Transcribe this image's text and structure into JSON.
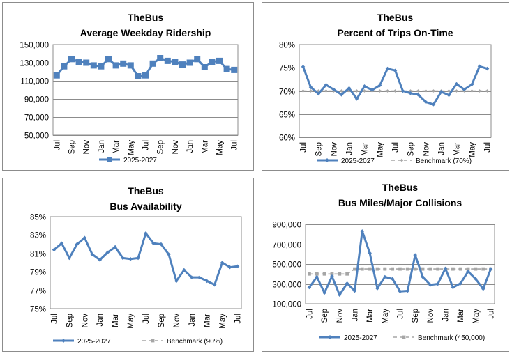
{
  "chart_data": [
    {
      "id": "ridership",
      "type": "line",
      "title": "TheBus",
      "subtitle": "Average Weekday Ridership",
      "ylim": [
        50000,
        150000
      ],
      "yticks": [
        50000,
        70000,
        90000,
        110000,
        130000,
        150000
      ],
      "ytick_labels": [
        "50,000",
        "70,000",
        "90,000",
        "110,000",
        "130,000",
        "150,000"
      ],
      "x_tick_labels": [
        "Jul",
        "Sep",
        "Nov",
        "Jan",
        "Mar",
        "May",
        "Jul",
        "Sep",
        "Nov",
        "Jan",
        "Mar",
        "May",
        "Jul"
      ],
      "grid": true,
      "legend_position": "bottom",
      "series": [
        {
          "name": "2025-2027",
          "color": "#4f81bd",
          "marker": "square",
          "values": [
            116000,
            126000,
            134000,
            131000,
            130000,
            127000,
            126000,
            134000,
            127000,
            129000,
            127000,
            115000,
            116000,
            129000,
            135000,
            132000,
            131000,
            128000,
            130000,
            134000,
            125000,
            131000,
            132000,
            123000,
            122000
          ]
        }
      ]
    },
    {
      "id": "on_time",
      "type": "line",
      "title": "TheBus",
      "subtitle": "Percent of Trips On-Time",
      "ylim": [
        60,
        80
      ],
      "yticks": [
        60,
        65,
        70,
        75,
        80
      ],
      "ytick_labels": [
        "60%",
        "65%",
        "70%",
        "75%",
        "80%"
      ],
      "x_tick_labels": [
        "Jul",
        "Sep",
        "Nov",
        "Jan",
        "Mar",
        "May",
        "Jul",
        "Sep",
        "Nov",
        "Jan",
        "Mar",
        "May",
        "Jul"
      ],
      "grid": true,
      "legend_position": "bottom",
      "series": [
        {
          "name": "2025-2027",
          "color": "#4f81bd",
          "marker": "diamond",
          "values": [
            75.2,
            70.8,
            69.4,
            71.3,
            70.3,
            69.2,
            70.6,
            68.3,
            71.0,
            70.2,
            71.2,
            74.8,
            74.4,
            70.0,
            69.5,
            69.2,
            67.6,
            67.1,
            69.8,
            69.1,
            71.5,
            70.3,
            71.4,
            75.3,
            74.8
          ]
        },
        {
          "name": "Benchmark (70%)",
          "color": "#a6a6a6",
          "marker": "diamond",
          "dashed": true,
          "values": [
            70,
            70,
            70,
            70,
            70,
            70,
            70,
            70,
            70,
            70,
            70,
            70,
            70,
            70,
            70,
            70,
            70,
            70,
            70,
            70,
            70,
            70,
            70,
            70,
            70
          ]
        }
      ]
    },
    {
      "id": "availability",
      "type": "line",
      "title": "TheBus",
      "subtitle": "Bus Availability",
      "ylim": [
        75,
        85
      ],
      "yticks": [
        75,
        77,
        79,
        81,
        83,
        85
      ],
      "ytick_labels": [
        "75%",
        "77%",
        "79%",
        "81%",
        "83%",
        "85%"
      ],
      "x_tick_labels": [
        "Jul",
        "Sep",
        "Nov",
        "Jan",
        "Mar",
        "May",
        "Jul",
        "Sep",
        "Nov",
        "Jan",
        "Mar",
        "May",
        "Jul"
      ],
      "grid": true,
      "legend_position": "bottom",
      "series": [
        {
          "name": "2025-2027",
          "color": "#4f81bd",
          "marker": "diamond",
          "values": [
            81.4,
            82.1,
            80.5,
            82.0,
            82.7,
            80.9,
            80.3,
            81.1,
            81.7,
            80.5,
            80.4,
            80.5,
            83.2,
            82.1,
            82.0,
            80.9,
            78.0,
            79.2,
            78.4,
            78.4,
            78.0,
            77.6,
            80.0,
            79.5,
            79.6
          ]
        },
        {
          "name": "Benchmark (90%)",
          "color": "#a6a6a6",
          "marker": "square",
          "dashed": true,
          "values": [
            90,
            90,
            90,
            90,
            90,
            90,
            90,
            90,
            90,
            90,
            90,
            90,
            90,
            90,
            90,
            90,
            90,
            90,
            90,
            90,
            90,
            90,
            90,
            90,
            90
          ]
        }
      ]
    },
    {
      "id": "collisions",
      "type": "line",
      "title": "TheBus",
      "subtitle": "Bus Miles/Major Collisions",
      "ylim": [
        100000,
        900000
      ],
      "yticks": [
        100000,
        300000,
        500000,
        700000,
        900000
      ],
      "ytick_labels": [
        "100,000",
        "300,000",
        "500,000",
        "700,000",
        "900,000"
      ],
      "x_tick_labels": [
        "Jul",
        "Sep",
        "Nov",
        "Jan",
        "Mar",
        "May",
        "Jul",
        "Sep",
        "Nov",
        "Jan",
        "Mar",
        "May",
        "Jul"
      ],
      "grid": true,
      "legend_position": "bottom",
      "series": [
        {
          "name": "2025-2027",
          "color": "#4f81bd",
          "marker": "diamond",
          "values": [
            265000,
            370000,
            210000,
            375000,
            190000,
            305000,
            230000,
            830000,
            610000,
            255000,
            370000,
            350000,
            225000,
            230000,
            590000,
            370000,
            290000,
            300000,
            455000,
            265000,
            305000,
            425000,
            350000,
            250000,
            450000
          ]
        },
        {
          "name": "Benchmark (450,000)",
          "color": "#a6a6a6",
          "marker": "square",
          "dashed": true,
          "values": [
            400000,
            400000,
            400000,
            400000,
            400000,
            400000,
            450000,
            450000,
            450000,
            450000,
            450000,
            450000,
            450000,
            450000,
            450000,
            450000,
            450000,
            450000,
            450000,
            450000,
            450000,
            450000,
            450000,
            450000,
            450000
          ]
        }
      ]
    }
  ]
}
